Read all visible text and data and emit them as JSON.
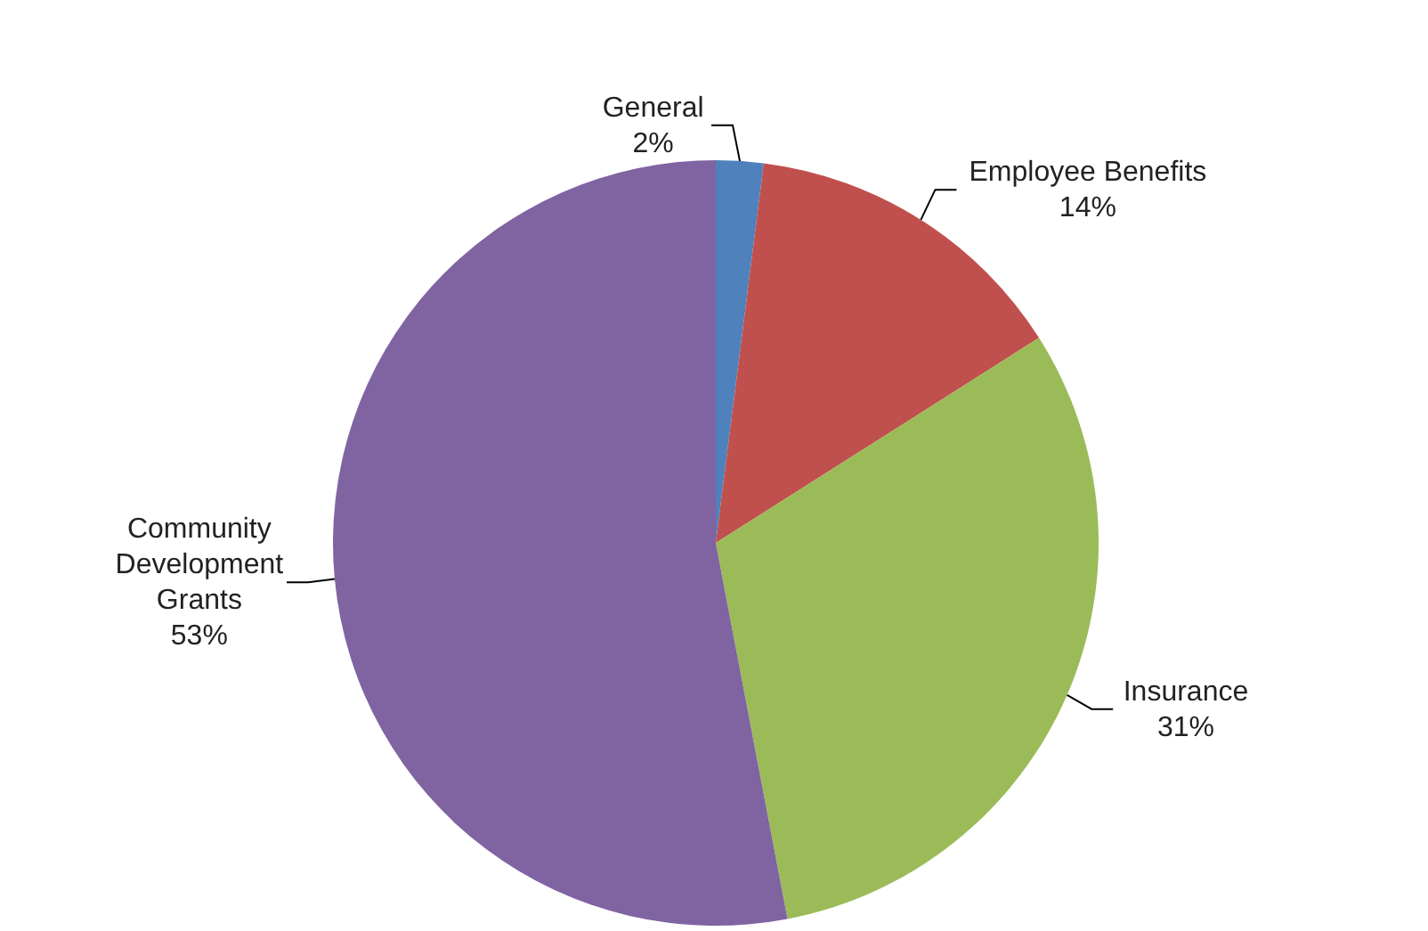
{
  "chart_data": {
    "type": "pie",
    "categories": [
      "General",
      "Employee Benefits",
      "Insurance",
      "Community Development Grants"
    ],
    "values": [
      2,
      14,
      31,
      53
    ],
    "value_labels": [
      "2%",
      "14%",
      "31%",
      "53%"
    ],
    "colors": [
      "#4f81bd",
      "#c0504d",
      "#9bbb59",
      "#8064a2"
    ]
  }
}
